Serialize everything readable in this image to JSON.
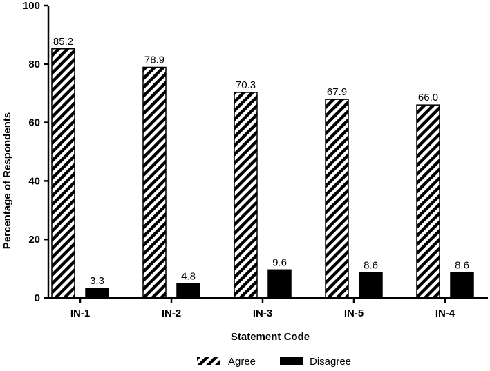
{
  "chart_data": {
    "type": "bar",
    "categories": [
      "IN-1",
      "IN-2",
      "IN-3",
      "IN-5",
      "IN-4"
    ],
    "series": [
      {
        "name": "Agree",
        "values": [
          85.2,
          78.9,
          70.3,
          67.9,
          66.0
        ],
        "data_labels": [
          "85.2",
          "78.9",
          "70.3",
          "67.9",
          "66.0"
        ],
        "fill": "hatched"
      },
      {
        "name": "Disagree",
        "values": [
          3.3,
          4.8,
          9.6,
          8.6,
          8.6
        ],
        "data_labels": [
          "3.3",
          "4.8",
          "9.6",
          "8.6",
          "8.6"
        ],
        "fill": "solid"
      }
    ],
    "xlabel": "Statement Code",
    "ylabel": "Percentage of Respondents",
    "ylim": [
      0,
      100
    ],
    "yticks": [
      "0",
      "20",
      "40",
      "60",
      "80",
      "100"
    ],
    "grid": false,
    "legend_position": "bottom",
    "colors": {
      "bar": "#000000",
      "background": "#ffffff"
    }
  }
}
